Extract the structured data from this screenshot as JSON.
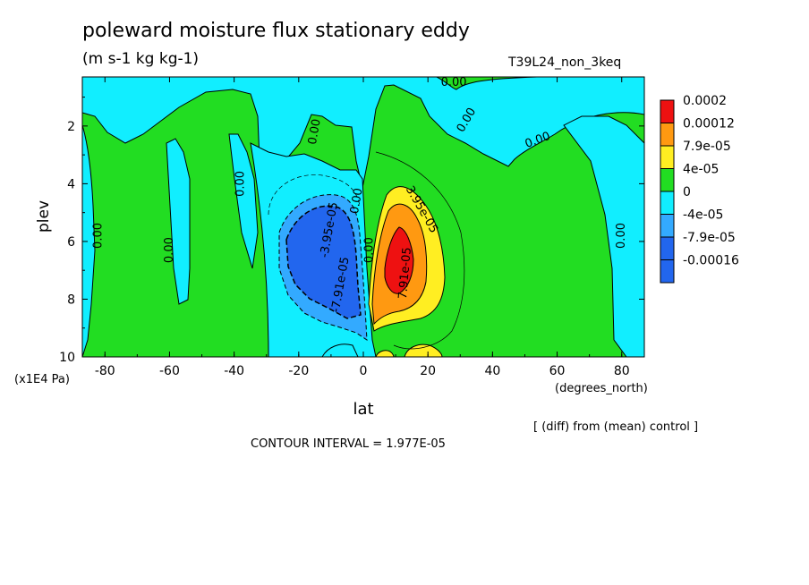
{
  "title": "poleward moisture flux stationary eddy",
  "units": "(m s-1 kg kg-1)",
  "experiment": "T39L24_non_3keq",
  "diff_note": "[ (diff) from (mean) control ]",
  "contour_interval": "CONTOUR INTERVAL = 1.977E-05",
  "chart_data": {
    "type": "heatmap",
    "xlabel": "lat",
    "ylabel": "plev",
    "x_unit": "(degrees_north)",
    "y_unit": "(x1E4 Pa)",
    "xlim": [
      -87,
      87
    ],
    "ylim": [
      10,
      0.3
    ],
    "x_ticks": [
      -80,
      -60,
      -40,
      -20,
      0,
      20,
      40,
      60,
      80
    ],
    "x_tick_labels": [
      "-80",
      "-60",
      "-40",
      "-20",
      "0",
      "20",
      "40",
      "60",
      "80"
    ],
    "y_ticks": [
      2,
      4,
      6,
      8,
      10
    ],
    "y_tick_labels": [
      "2",
      "4",
      "6",
      "8",
      "10"
    ],
    "legend": {
      "placement": "right",
      "levels": [
        {
          "label": "0.0002",
          "color": "#ee1111"
        },
        {
          "label": "0.00012",
          "color": "#ff9911"
        },
        {
          "label": "7.9e-05",
          "color": "#ffee22"
        },
        {
          "label": "4e-05",
          "color": "#22dd22"
        },
        {
          "label": "0",
          "color": "#11eeff"
        },
        {
          "label": "-4e-05",
          "color": "#33aaff"
        },
        {
          "label": "-7.9e-05",
          "color": "#2266ee"
        },
        {
          "label": "-0.00016",
          "color": "#2266ee"
        }
      ]
    },
    "contour_labels": [
      {
        "text": "0.00",
        "lat": -82,
        "plev": 5.8,
        "angle": -90
      },
      {
        "text": "0.00",
        "lat": -60,
        "plev": 6.3,
        "angle": -90
      },
      {
        "text": "0.00",
        "lat": -38,
        "plev": 4.0,
        "angle": -90
      },
      {
        "text": "0.00",
        "lat": -15,
        "plev": 2.2,
        "angle": -80
      },
      {
        "text": "0.00",
        "lat": -2,
        "plev": 4.6,
        "angle": -80
      },
      {
        "text": "0.00",
        "lat": 2,
        "plev": 6.3,
        "angle": -90
      },
      {
        "text": "0.00",
        "lat": 28,
        "plev": 0.5,
        "angle": 0
      },
      {
        "text": "0.00",
        "lat": 32,
        "plev": 1.8,
        "angle": -60
      },
      {
        "text": "0.00",
        "lat": 54,
        "plev": 2.5,
        "angle": -20
      },
      {
        "text": "0.00",
        "lat": 80,
        "plev": 5.8,
        "angle": -90
      },
      {
        "text": "-3.95e-05",
        "lat": -10.5,
        "plev": 5.6,
        "angle": -80
      },
      {
        "text": "-7.91e-05",
        "lat": -7,
        "plev": 7.5,
        "angle": -80
      },
      {
        "text": "3.95e-05",
        "lat": 18,
        "plev": 4.9,
        "angle": 60
      },
      {
        "text": "7.91e-05",
        "lat": 13,
        "plev": 7.1,
        "angle": -85
      }
    ]
  }
}
